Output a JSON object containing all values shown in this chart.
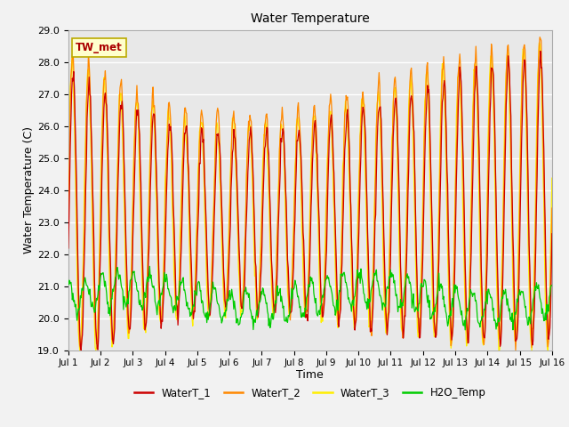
{
  "title": "Water Temperature",
  "xlabel": "Time",
  "ylabel": "Water Temperature (C)",
  "ylim": [
    19.0,
    29.0
  ],
  "yticks": [
    19.0,
    20.0,
    21.0,
    22.0,
    23.0,
    24.0,
    25.0,
    26.0,
    27.0,
    28.0,
    29.0
  ],
  "xtick_labels": [
    "Jul 1",
    "Jul 2",
    "Jul 3",
    "Jul 4",
    "Jul 5",
    "Jul 6",
    "Jul 7",
    "Jul 8",
    "Jul 9",
    "Jul 10",
    "Jul 11",
    "Jul 12",
    "Jul 13",
    "Jul 14",
    "Jul 15",
    "Jul 16"
  ],
  "colors": {
    "WaterT_1": "#cc0000",
    "WaterT_2": "#ff8800",
    "WaterT_3": "#ffee00",
    "H2O_Temp": "#00cc00"
  },
  "annotation_text": "TW_met",
  "annotation_color": "#aa0000",
  "annotation_bg": "#ffffcc",
  "annotation_border": "#bbaa00",
  "plot_bg_color": "#e8e8e8",
  "fig_bg_color": "#f2f2f2",
  "grid_color": "#ffffff",
  "n_points": 720
}
